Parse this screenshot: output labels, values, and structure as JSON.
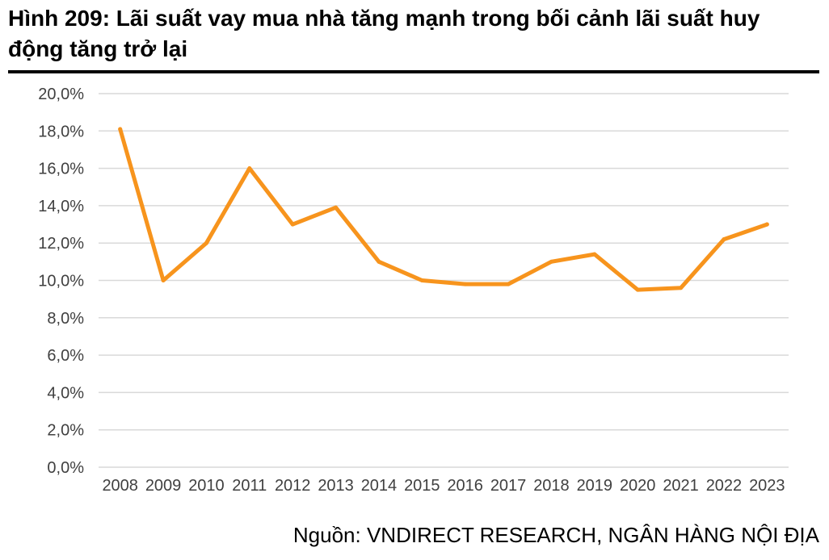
{
  "title": "Hình 209: Lãi suất vay mua nhà tăng mạnh trong bối cảnh lãi suất huy động tăng trở lại",
  "source": "Nguồn: VNDIRECT RESEARCH, NGÂN HÀNG NỘI ĐỊA",
  "colors": {
    "line": "#F7941D",
    "grid": "#D9D9D9",
    "axis_text": "#404040"
  },
  "chart_data": {
    "type": "line",
    "title": "",
    "xlabel": "",
    "ylabel": "",
    "x": [
      "2008",
      "2009",
      "2010",
      "2011",
      "2012",
      "2013",
      "2014",
      "2015",
      "2016",
      "2017",
      "2018",
      "2019",
      "2020",
      "2021",
      "2022",
      "2023"
    ],
    "series": [
      {
        "values": [
          18.1,
          10.0,
          12.0,
          16.0,
          13.0,
          13.9,
          11.0,
          10.0,
          9.8,
          9.8,
          11.0,
          11.4,
          9.5,
          9.6,
          12.2,
          13.0
        ]
      }
    ],
    "ylim": [
      0,
      20
    ],
    "yticks": [
      "0,0%",
      "2,0%",
      "4,0%",
      "6,0%",
      "8,0%",
      "10,0%",
      "12,0%",
      "14,0%",
      "16,0%",
      "18,0%",
      "20,0%"
    ],
    "grid": true,
    "legend": "none"
  }
}
